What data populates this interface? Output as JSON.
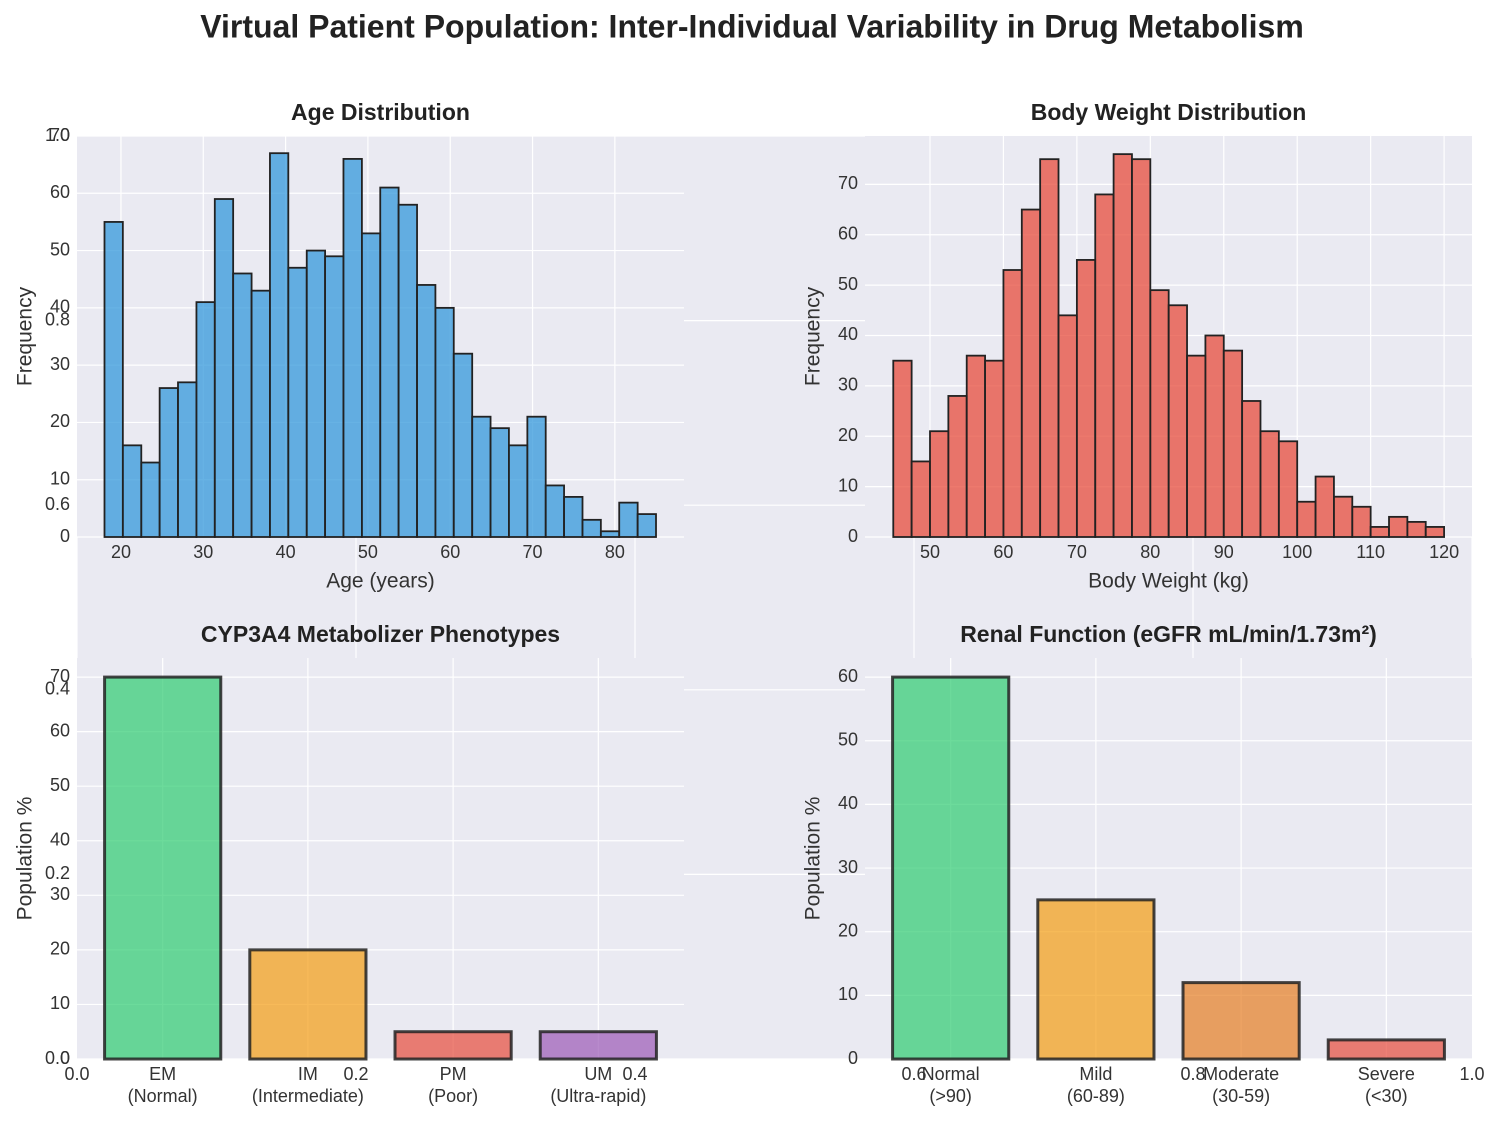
{
  "title": "Virtual Patient Population: Inter-Individual Variability in Drug Metabolism",
  "chart_data": [
    {
      "type": "axes",
      "xlim": [
        0,
        1
      ],
      "ylim": [
        0,
        1
      ],
      "xticks": [
        {
          "value": 0,
          "label": "0.0"
        },
        0.2,
        0.4,
        0.6,
        0.8,
        {
          "value": 1,
          "label": "1.0"
        }
      ],
      "yticks": [
        {
          "value": 0,
          "label": "0.0"
        },
        0.2,
        0.4,
        0.6,
        0.8,
        {
          "value": 1,
          "label": "1.0"
        }
      ],
      "grid": true
    },
    {
      "type": "histogram",
      "title": "Age Distribution",
      "xlabel": "Age (years)",
      "ylabel": "Frequency",
      "color": "#3498db",
      "bins": [
        18,
        20.23,
        22.47,
        24.7,
        26.93,
        29.17,
        31.4,
        33.63,
        35.87,
        38.1,
        40.33,
        42.57,
        44.8,
        47.03,
        49.27,
        51.5,
        53.73,
        55.97,
        58.2,
        60.43,
        62.67,
        64.9,
        67.13,
        69.37,
        71.6,
        73.83,
        76.07,
        78.3,
        80.53,
        82.77,
        85
      ],
      "values": [
        55,
        16,
        13,
        26,
        27,
        41,
        59,
        46,
        43,
        67,
        47,
        50,
        49,
        66,
        53,
        61,
        58,
        44,
        40,
        32,
        21,
        19,
        16,
        21,
        9,
        7,
        3,
        1,
        6,
        4
      ],
      "xlim": [
        14.66,
        88.4
      ],
      "ylim": [
        0,
        70
      ],
      "xticks": [
        20,
        30,
        40,
        50,
        60,
        70,
        80
      ],
      "yticks": [
        0,
        10,
        20,
        30,
        40,
        50,
        60,
        70
      ],
      "grid": true
    },
    {
      "type": "histogram",
      "title": "Body Weight Distribution",
      "xlabel": "Body Weight (kg)",
      "ylabel": "Frequency",
      "color": "#e74c3c",
      "bins": [
        45,
        47.5,
        50,
        52.5,
        55,
        57.5,
        60,
        62.5,
        65,
        67.5,
        70,
        72.5,
        75,
        77.5,
        80,
        82.5,
        85,
        87.5,
        90,
        92.5,
        95,
        97.5,
        100,
        102.5,
        105,
        107.5,
        110,
        112.5,
        115,
        117.5,
        120
      ],
      "values": [
        35,
        15,
        21,
        28,
        36,
        35,
        53,
        65,
        75,
        44,
        55,
        68,
        76,
        75,
        49,
        46,
        36,
        40,
        37,
        27,
        21,
        19,
        7,
        12,
        8,
        6,
        2,
        4,
        3,
        2
      ],
      "xlim": [
        41.15,
        123.8
      ],
      "ylim": [
        0,
        79.6
      ],
      "xticks": [
        50,
        60,
        70,
        80,
        90,
        100,
        110,
        120
      ],
      "yticks": [
        0,
        10,
        20,
        30,
        40,
        50,
        60,
        70
      ],
      "grid": true
    },
    {
      "type": "bar",
      "title": "CYP3A4 Metabolizer Phenotypes",
      "ylabel": "Population %",
      "categories": [
        "EM\n(Normal)",
        "IM\n(Intermediate)",
        "PM\n(Poor)",
        "UM\n(Ultra-rapid)"
      ],
      "values": [
        70,
        20,
        5,
        5
      ],
      "colors": [
        "#2ecc71",
        "#f39c12",
        "#e74c3c",
        "#9b59b6"
      ],
      "ylim": [
        0,
        73.5
      ],
      "yticks": [
        0,
        10,
        20,
        30,
        40,
        50,
        60,
        70
      ],
      "grid": true
    },
    {
      "type": "bar",
      "title": "Renal Function (eGFR mL/min/1.73m²)",
      "ylabel": "Population %",
      "categories": [
        "Normal\n(>90)",
        "Mild\n(60-89)",
        "Moderate\n(30-59)",
        "Severe\n(<30)"
      ],
      "values": [
        60,
        25,
        12,
        3
      ],
      "colors": [
        "#2ecc71",
        "#f39c12",
        "#e67e22",
        "#e74c3c"
      ],
      "ylim": [
        0,
        63
      ],
      "yticks": [
        0,
        10,
        20,
        30,
        40,
        50,
        60
      ],
      "grid": true
    }
  ]
}
